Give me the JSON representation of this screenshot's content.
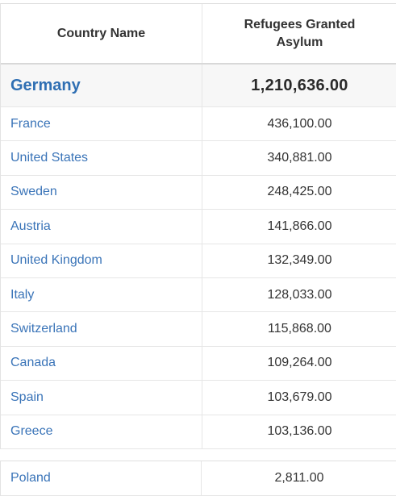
{
  "table": {
    "headers": {
      "country": "Country Name",
      "value": "Refugees Granted Asylum"
    },
    "featured": {
      "country": "Germany",
      "value": "1,210,636.00"
    },
    "rows": [
      {
        "country": "France",
        "value": "436,100.00"
      },
      {
        "country": "United States",
        "value": "340,881.00"
      },
      {
        "country": "Sweden",
        "value": "248,425.00"
      },
      {
        "country": "Austria",
        "value": "141,866.00"
      },
      {
        "country": "United Kingdom",
        "value": "132,349.00"
      },
      {
        "country": "Italy",
        "value": "128,033.00"
      },
      {
        "country": "Switzerland",
        "value": "115,868.00"
      },
      {
        "country": "Canada",
        "value": "109,264.00"
      },
      {
        "country": "Spain",
        "value": "103,679.00"
      },
      {
        "country": "Greece",
        "value": "103,136.00"
      }
    ],
    "last": {
      "country": "Poland",
      "value": "2,811.00"
    }
  },
  "colors": {
    "link": "#3a74b8",
    "featured_link": "#2f6fb3",
    "text": "#333333"
  }
}
